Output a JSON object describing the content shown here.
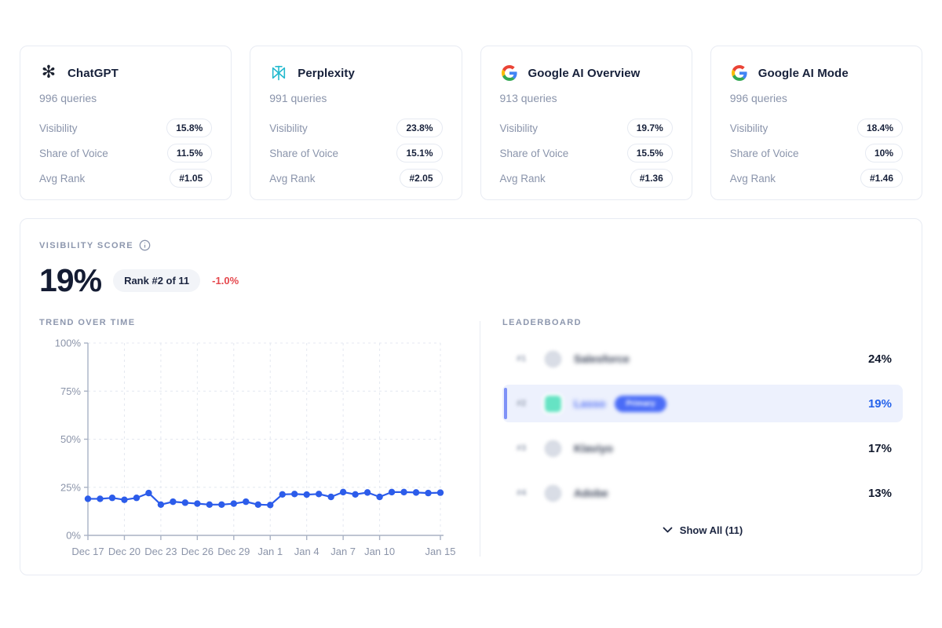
{
  "cards": [
    {
      "title": "ChatGPT",
      "icon": "openai-logo",
      "queries": "996 queries",
      "metrics": [
        {
          "label": "Visibility",
          "value": "15.8%"
        },
        {
          "label": "Share of Voice",
          "value": "11.5%"
        },
        {
          "label": "Avg Rank",
          "value": "#1.05"
        }
      ]
    },
    {
      "title": "Perplexity",
      "icon": "perplexity-logo",
      "queries": "991 queries",
      "metrics": [
        {
          "label": "Visibility",
          "value": "23.8%"
        },
        {
          "label": "Share of Voice",
          "value": "15.1%"
        },
        {
          "label": "Avg Rank",
          "value": "#2.05"
        }
      ]
    },
    {
      "title": "Google AI Overview",
      "icon": "google-logo",
      "queries": "913 queries",
      "metrics": [
        {
          "label": "Visibility",
          "value": "19.7%"
        },
        {
          "label": "Share of Voice",
          "value": "15.5%"
        },
        {
          "label": "Avg Rank",
          "value": "#1.36"
        }
      ]
    },
    {
      "title": "Google AI Mode",
      "icon": "google-logo",
      "queries": "996 queries",
      "metrics": [
        {
          "label": "Visibility",
          "value": "18.4%"
        },
        {
          "label": "Share of Voice",
          "value": "10%"
        },
        {
          "label": "Avg Rank",
          "value": "#1.46"
        }
      ]
    }
  ],
  "visibility": {
    "section_label": "VISIBILITY SCORE",
    "score": "19%",
    "rank_badge": "Rank #2 of 11",
    "change": "-1.0%",
    "change_color": "#e5484d"
  },
  "chart_data": {
    "type": "line",
    "title": "TREND OVER TIME",
    "x": [
      "Dec 17",
      "Dec 18",
      "Dec 19",
      "Dec 20",
      "Dec 21",
      "Dec 22",
      "Dec 23",
      "Dec 24",
      "Dec 25",
      "Dec 26",
      "Dec 27",
      "Dec 28",
      "Dec 29",
      "Dec 30",
      "Dec 31",
      "Jan 1",
      "Jan 2",
      "Jan 3",
      "Jan 4",
      "Jan 5",
      "Jan 6",
      "Jan 7",
      "Jan 8",
      "Jan 9",
      "Jan 10",
      "Jan 11",
      "Jan 12",
      "Jan 13",
      "Jan 14",
      "Jan 15"
    ],
    "series": [
      {
        "name": "Visibility %",
        "values": [
          19,
          19,
          19.5,
          18.5,
          19.5,
          22,
          16,
          17.5,
          17,
          16.5,
          16,
          16,
          16.5,
          17.5,
          16,
          15.8,
          21.3,
          21.5,
          21.2,
          21.5,
          20,
          22.5,
          21.3,
          22.3,
          20,
          22.5,
          22.5,
          22.3,
          22,
          22.2
        ]
      }
    ],
    "x_tick_indices": [
      0,
      3,
      6,
      9,
      12,
      15,
      18,
      21,
      24,
      29
    ],
    "y_ticks": [
      "0%",
      "25%",
      "50%",
      "75%",
      "100%"
    ],
    "ylim": [
      0,
      100
    ],
    "grid": true,
    "legend": "none",
    "line_color": "#2c5cea",
    "xlabel": "",
    "ylabel": ""
  },
  "trend": {
    "label": "TREND OVER TIME"
  },
  "leaderboard": {
    "label": "LEADERBOARD",
    "rows": [
      {
        "rank": "#1",
        "name": "Salesforce",
        "value": "24%",
        "highlighted": false,
        "blurred": true
      },
      {
        "rank": "#2",
        "name": "Lasso",
        "badge": "Primary",
        "value": "19%",
        "highlighted": true,
        "blurred": true
      },
      {
        "rank": "#3",
        "name": "Klaviyo",
        "value": "17%",
        "highlighted": false,
        "blurred": true
      },
      {
        "rank": "#4",
        "name": "Adobe",
        "value": "13%",
        "highlighted": false,
        "blurred": true
      }
    ],
    "show_all": "Show All (11)"
  },
  "colors": {
    "accent_blue": "#2c5cea",
    "leader_highlight_bg": "#edf1fd",
    "leader_accent_bar": "#7f92f7",
    "negative_red": "#e5484d",
    "label_gray": "#8d97ae",
    "teal_logo": "#66e3c4",
    "perplexity_teal": "#20b8cd"
  }
}
